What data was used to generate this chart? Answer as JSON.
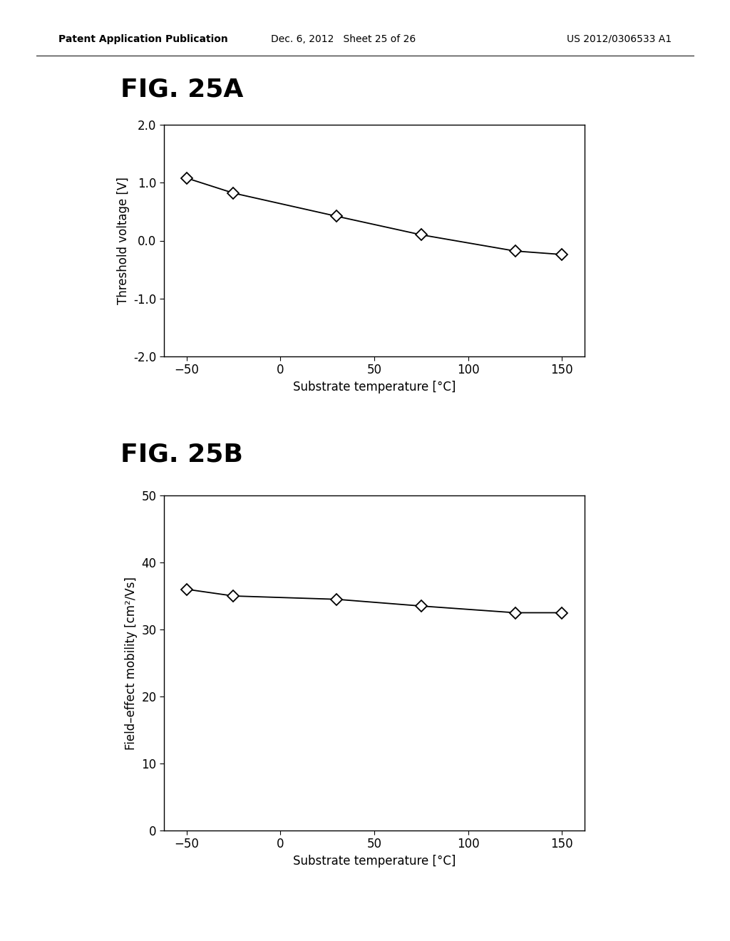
{
  "header_left": "Patent Application Publication",
  "header_mid": "Dec. 6, 2012   Sheet 25 of 26",
  "header_right": "US 2012/0306533 A1",
  "fig_a_label": "FIG. 25A",
  "fig_b_label": "FIG. 25B",
  "fig_a": {
    "x": [
      -50,
      -25,
      30,
      75,
      125,
      150
    ],
    "y": [
      1.08,
      0.82,
      0.42,
      0.1,
      -0.18,
      -0.24
    ],
    "xlabel": "Substrate temperature [°C]",
    "ylabel": "Threshold voltage [V]",
    "xlim": [
      -62,
      162
    ],
    "ylim": [
      -2.0,
      2.0
    ],
    "xticks": [
      -50,
      0,
      50,
      100,
      150
    ],
    "yticks": [
      -2.0,
      -1.0,
      0.0,
      1.0,
      2.0
    ]
  },
  "fig_b": {
    "x": [
      -50,
      -25,
      30,
      75,
      125,
      150
    ],
    "y": [
      36.0,
      35.0,
      34.5,
      33.5,
      32.5,
      32.5
    ],
    "xlabel": "Substrate temperature [°C]",
    "ylabel": "Field–effect mobility [cm²/Vs]",
    "xlim": [
      -62,
      162
    ],
    "ylim": [
      0,
      50
    ],
    "xticks": [
      -50,
      0,
      50,
      100,
      150
    ],
    "yticks": [
      0,
      10,
      20,
      30,
      40,
      50
    ]
  },
  "line_color": "#000000",
  "marker": "D",
  "marker_size": 8,
  "marker_facecolor": "#ffffff",
  "marker_edgecolor": "#000000",
  "marker_edgewidth": 1.3,
  "line_width": 1.3,
  "background_color": "#ffffff",
  "header_fontsize": 10,
  "fig_label_fontsize": 26,
  "axis_label_fontsize": 12,
  "tick_fontsize": 12
}
